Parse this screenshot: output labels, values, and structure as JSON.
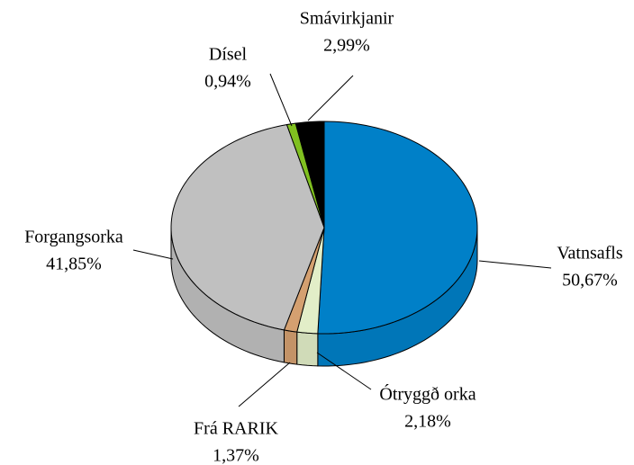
{
  "chart_data": {
    "type": "pie",
    "categories": [
      "Vatnsafls",
      "Ótryggð orka",
      "Frá RARIK",
      "Forgangsorka",
      "Dísel",
      "Smávirkjanir"
    ],
    "values": [
      50.67,
      2.18,
      1.37,
      41.85,
      0.94,
      2.99
    ],
    "value_labels": [
      "50,67%",
      "2,18%",
      "1,37%",
      "41,85%",
      "0,94%",
      "2,99%"
    ],
    "colors": [
      "#0080c8",
      "#e2eec8",
      "#d4a070",
      "#c0c0c0",
      "#80c020",
      "#000000"
    ]
  }
}
